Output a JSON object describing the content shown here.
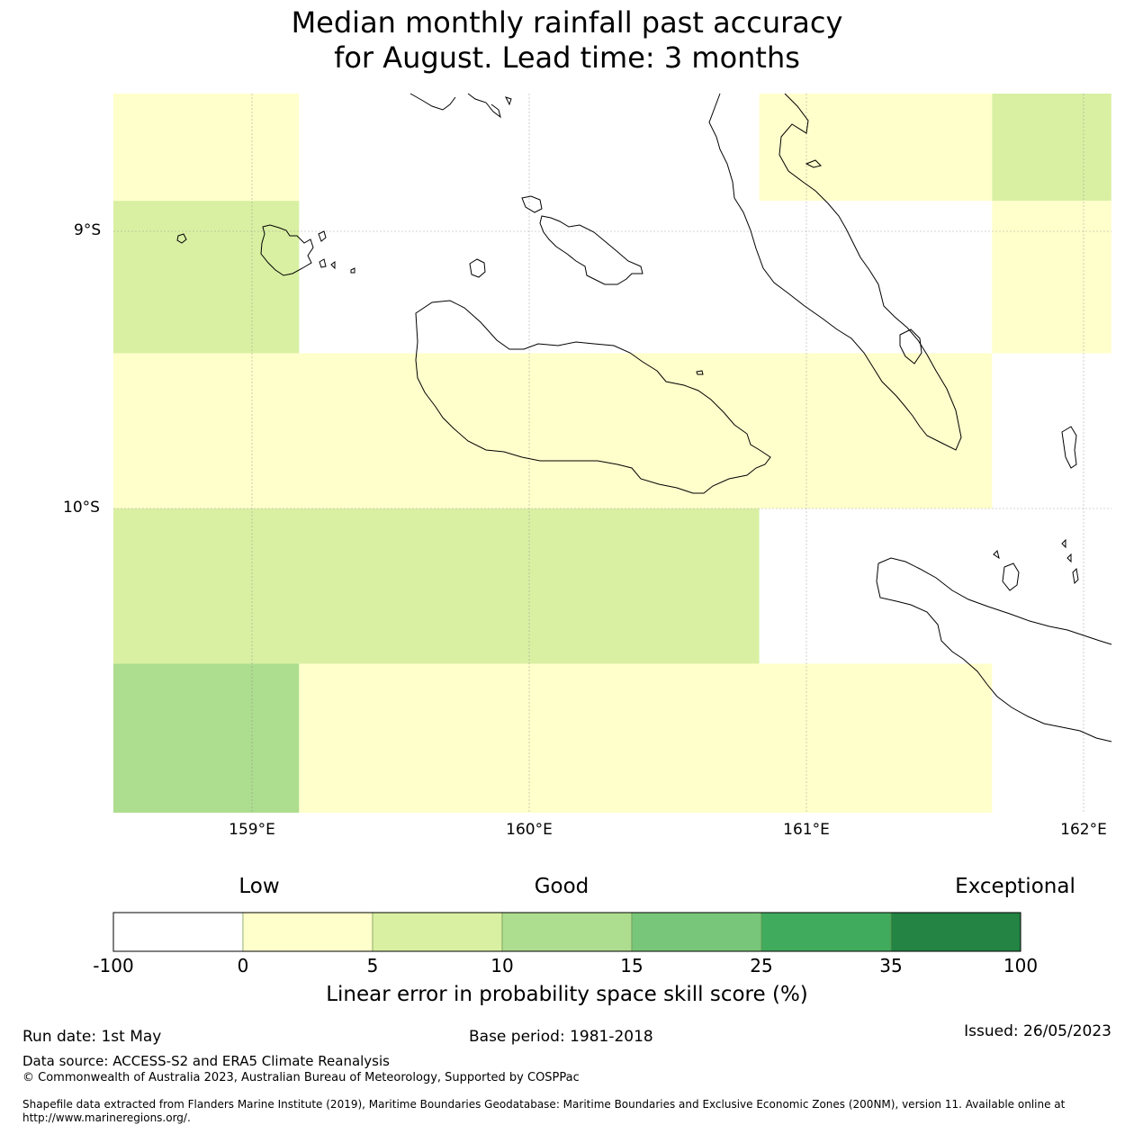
{
  "title": {
    "line1": "Median monthly rainfall past accuracy",
    "line2": "for August. Lead time: 3 months"
  },
  "map": {
    "lat_labels": [
      "9°S",
      "10°S"
    ],
    "lon_labels": [
      "159°E",
      "160°E",
      "161°E",
      "162°E"
    ],
    "region_lon_range": [
      158.5,
      162.1
    ],
    "region_lat_range": [
      -11.1,
      -8.5
    ],
    "skill_cells": [
      {
        "lon": [
          158.5,
          159.17
        ],
        "lat": [
          -8.5,
          -8.89
        ],
        "category": "0-5"
      },
      {
        "lon": [
          158.5,
          159.17
        ],
        "lat": [
          -8.89,
          -9.44
        ],
        "category": "5-10"
      },
      {
        "lon": [
          160.83,
          161.67
        ],
        "lat": [
          -8.5,
          -8.89
        ],
        "category": "0-5"
      },
      {
        "lon": [
          161.67,
          162.1
        ],
        "lat": [
          -8.5,
          -8.89
        ],
        "category": "5-10"
      },
      {
        "lon": [
          161.67,
          162.1
        ],
        "lat": [
          -8.89,
          -9.44
        ],
        "category": "0-5"
      },
      {
        "lon": [
          158.5,
          161.67
        ],
        "lat": [
          -9.44,
          -10.0
        ],
        "category": "0-5"
      },
      {
        "lon": [
          158.5,
          160.83
        ],
        "lat": [
          -10.0,
          -10.56
        ],
        "category": "5-10"
      },
      {
        "lon": [
          158.5,
          159.17
        ],
        "lat": [
          -10.56,
          -11.1
        ],
        "category": "10-15"
      },
      {
        "lon": [
          159.17,
          161.67
        ],
        "lat": [
          -10.56,
          -11.1
        ],
        "category": "0-5"
      }
    ]
  },
  "scale": {
    "low": "Low",
    "good": "Good",
    "exceptional": "Exceptional",
    "ticks": [
      "-100",
      "0",
      "5",
      "10",
      "15",
      "25",
      "35",
      "100"
    ],
    "colors": [
      "#ffffff",
      "#ffffcc",
      "#d9f0a3",
      "#addd8e",
      "#78c679",
      "#41ab5d",
      "#238443"
    ],
    "label": "Linear error in probability space skill score (%)"
  },
  "footer": {
    "run_date": "Run date: 1st May",
    "base_period": "Base period: 1981-2018",
    "issued": "Issued: 26/05/2023",
    "data_source": "Data source: ACCESS-S2 and ERA5 Climate Reanalysis",
    "copyright": "© Commonwealth of Australia 2023, Australian Bureau of Meteorology, Supported by COSPPac",
    "shapefile": "Shapefile data extracted from Flanders Marine Institute (2019), Maritime Boundaries Geodatabase: Maritime Boundaries and Exclusive Economic Zones (200NM), version 11. Available online at http://www.marineregions.org/."
  }
}
